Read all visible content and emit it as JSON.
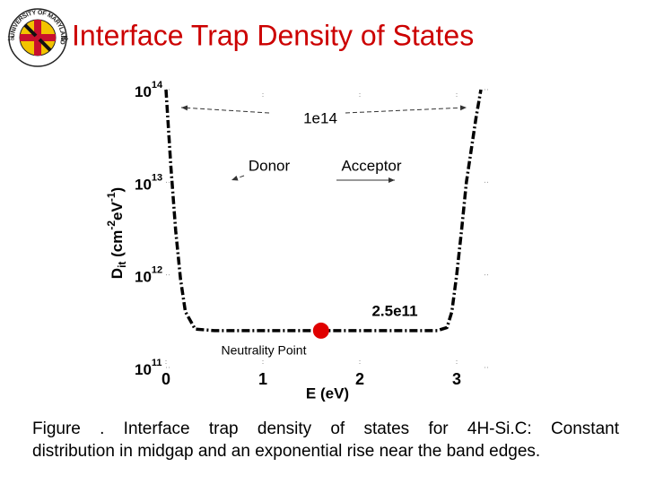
{
  "header": {
    "title": "Interface Trap Density of States"
  },
  "logo": {
    "ring_text": "UNIVERSITY OF MARYLAND",
    "left": "18",
    "right": "56"
  },
  "chart_data": {
    "type": "line",
    "x": [
      0,
      0.05,
      0.1,
      0.15,
      0.2,
      0.3,
      0.5,
      1.5,
      2.8,
      2.9,
      2.95,
      3.0,
      3.05,
      3.1,
      3.2,
      3.25
    ],
    "values": [
      100000000000000.0,
      15000000000000.0,
      3000000000000.0,
      900000000000.0,
      400000000000.0,
      260000000000.0,
      250000000000.0,
      250000000000.0,
      250000000000.0,
      270000000000.0,
      400000000000.0,
      1000000000000.0,
      3000000000000.0,
      10000000000000.0,
      50000000000000.0,
      100000000000000.0
    ],
    "color": "#000000",
    "yscale": "log",
    "xlim": [
      0,
      3.25
    ],
    "ylim": [
      100000000000.0,
      100000000000000.0
    ],
    "xticks": [
      0,
      1,
      2,
      3
    ],
    "yticks": [
      {
        "value": 100000000000.0,
        "label": "10",
        "exponent": "11"
      },
      {
        "value": 1000000000000.0,
        "label": "10",
        "exponent": "12"
      },
      {
        "value": 10000000000000.0,
        "label": "10",
        "exponent": "13"
      },
      {
        "value": 100000000000000.0,
        "label": "10",
        "exponent": "14"
      }
    ],
    "xlabel": "E (eV)",
    "ylabel": [
      {
        "text": "D"
      },
      {
        "text": "it",
        "shift": "sub"
      },
      {
        "text": " (cm"
      },
      {
        "text": "-2",
        "shift": "super"
      },
      {
        "text": "eV"
      },
      {
        "text": "-1",
        "shift": "super"
      },
      {
        "text": ")"
      }
    ],
    "annotations": {
      "top": "1e14",
      "donor": "Donor",
      "acceptor": "Acceptor",
      "flat": "2.5e11"
    },
    "neutrality_point": {
      "x": 1.6,
      "y": 250000000000.0,
      "label": "Neutrality Point",
      "color": "#e00000"
    }
  },
  "caption": {
    "lines": [
      "Figure . Interface trap density of states for 4H-Si.C: Constant",
      "distribution in midgap and an exponential rise near the band edges."
    ]
  }
}
